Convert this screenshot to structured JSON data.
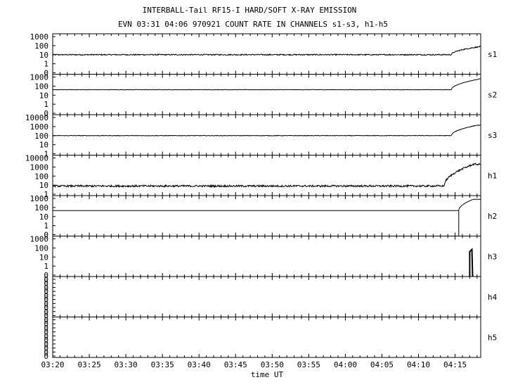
{
  "title_line1": "INTERBALL-Tail RF15-I HARD/SOFT X-RAY EMISSION",
  "title_line2": "EVN 03:31 04:06 970921  COUNT RATE IN CHANNELS s1-s3, h1-h5",
  "colors": {
    "background": "#ffffff",
    "ink": "#000000"
  },
  "chart_data": {
    "type": "line",
    "xlabel": "time UT",
    "x_ticks": [
      "03:20",
      "03:25",
      "03:30",
      "03:35",
      "03:40",
      "03:45",
      "03:50",
      "03:55",
      "04:00",
      "04:05",
      "04:10",
      "04:15"
    ],
    "x_range_min": [
      0,
      58.5
    ],
    "grid": false,
    "legend": "none",
    "panels": [
      {
        "name": "s1",
        "scale": "log",
        "ytick_labels": [
          "1000",
          "100",
          "10",
          "1",
          "0"
        ],
        "baseline": 10,
        "rise_start_min": 54.5,
        "peak": 80,
        "peak_min": 58.5,
        "noise_decades": 0.06
      },
      {
        "name": "s2",
        "scale": "log",
        "ytick_labels": [
          "1000",
          "100",
          "10",
          "1",
          "0"
        ],
        "baseline": 40,
        "rise_start_min": 54.5,
        "peak": 650,
        "peak_min": 58.5,
        "noise_decades": 0.02
      },
      {
        "name": "s3",
        "scale": "log",
        "ytick_labels": [
          "10000",
          "1000",
          "100",
          "10",
          "1"
        ],
        "baseline": 100,
        "rise_start_min": 54.5,
        "peak": 1400,
        "peak_min": 58.0,
        "noise_decades": 0.03
      },
      {
        "name": "h1",
        "scale": "log",
        "ytick_labels": [
          "10000",
          "1000",
          "100",
          "10",
          "1"
        ],
        "baseline": 8,
        "rise_start_min": 53.5,
        "peak": 2000,
        "peak_min": 57.5,
        "noise_decades": 0.1
      },
      {
        "name": "h2",
        "scale": "log",
        "ytick_labels": [
          "1000",
          "100",
          "10",
          "1",
          "0"
        ],
        "baseline": 45,
        "rise_start_min": 55.5,
        "peak": 800,
        "peak_min": 57.5,
        "noise_decades": 0.0
      },
      {
        "name": "h3",
        "scale": "log",
        "ytick_labels": [
          "1000",
          "100",
          "10",
          "1",
          "0"
        ],
        "baseline": 0,
        "rise_start_min": 57.0,
        "peak": 40,
        "peak_min": 57.3,
        "noise_decades": 0.0
      },
      {
        "name": "h4",
        "scale": "linear",
        "ytick_labels": [
          "0",
          "0",
          "0",
          "0",
          "0",
          "0",
          "0",
          "0",
          "0",
          "0"
        ],
        "baseline": 0,
        "noise_decades": 0.0
      },
      {
        "name": "h5",
        "scale": "linear",
        "ytick_labels": [
          "0",
          "0",
          "0",
          "0",
          "0",
          "0",
          "0",
          "0",
          "0",
          "0"
        ],
        "baseline": 0,
        "noise_decades": 0.0
      }
    ]
  }
}
